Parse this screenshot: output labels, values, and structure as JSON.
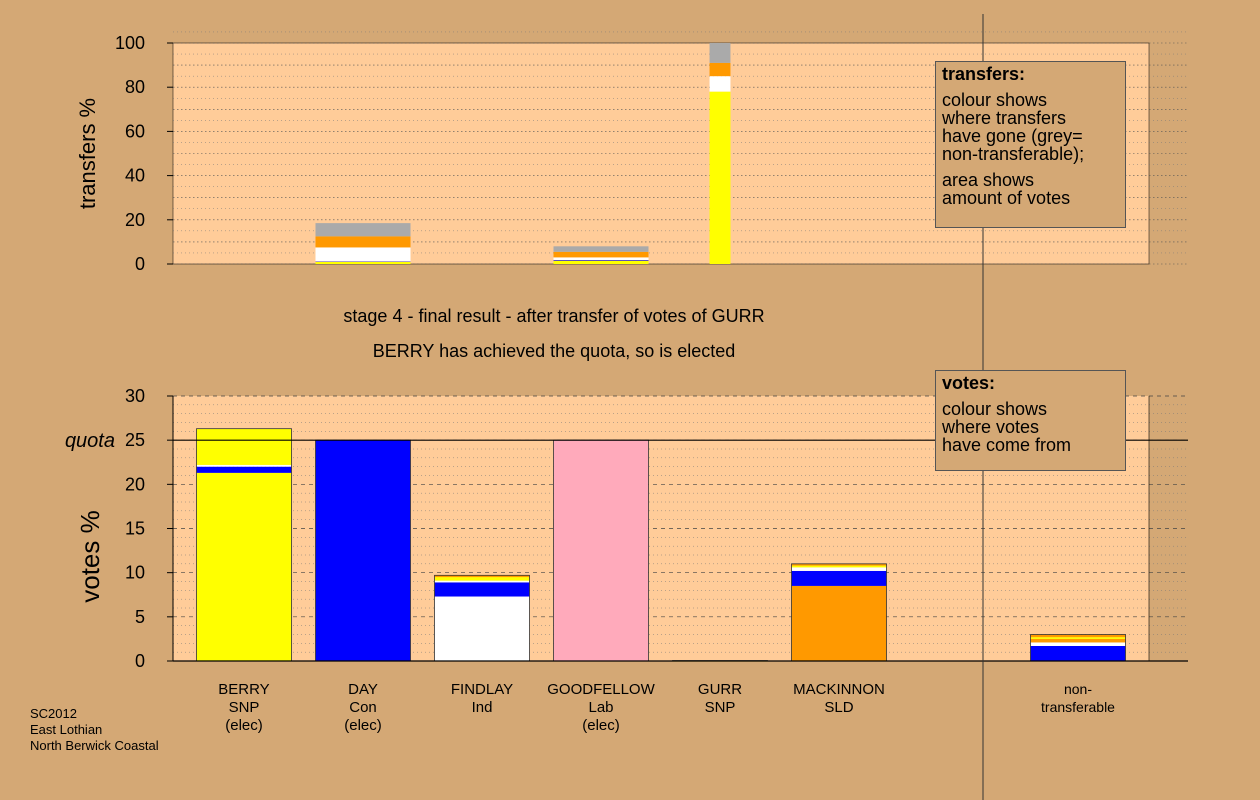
{
  "info": [
    "SC2012",
    "East Lothian",
    "North Berwick Coastal"
  ],
  "captions": [
    "stage 4 - final result - after transfer of votes of GURR",
    "BERRY has achieved the quota, so is elected"
  ],
  "legends": {
    "transfers": {
      "title": "transfers:",
      "lines_a": [
        "colour shows",
        "where transfers",
        "have gone (grey=",
        "non-transferable);"
      ],
      "lines_b": [
        "area shows",
        "amount of votes"
      ]
    },
    "votes": {
      "title": "votes:",
      "lines": [
        "colour shows",
        "where votes",
        "have come from"
      ]
    }
  },
  "colors": {
    "background": "#d4a875",
    "plot": "#ffcc99",
    "SNP": "#ffff00",
    "Con": "#0000ff",
    "Ind": "#ffffff",
    "Lab": "#ffaabb",
    "SLD": "#ff9900",
    "nontransferable": "#aaaaaa"
  },
  "chart_data": [
    {
      "type": "bar",
      "stacked": true,
      "ylabel": "transfers %",
      "ylim": [
        0,
        100
      ],
      "yticks": [
        0,
        20,
        40,
        60,
        80,
        100
      ],
      "grid": true,
      "categories": [
        "BERRY",
        "DAY",
        "FINDLAY",
        "GOODFELLOW",
        "GURR",
        "MACKINNON"
      ],
      "segment_order": [
        "BERRY",
        "DAY",
        "FINDLAY",
        "MACKINNON",
        "non-transferable"
      ],
      "segment_colors": [
        "#ffff00",
        "#0000ff",
        "#ffffff",
        "#ff9900",
        "#aaaaaa"
      ],
      "bars": [
        {
          "category": "DAY",
          "width_scale": 1.0,
          "segments": [
            1.0,
            0.2,
            6.3,
            5.0,
            6.0
          ]
        },
        {
          "category": "GOODFELLOW",
          "width_scale": 1.0,
          "segments": [
            1.5,
            0.3,
            1.2,
            2.5,
            2.5
          ]
        },
        {
          "category": "GURR",
          "width_scale": 0.22,
          "segments": [
            78,
            0,
            7,
            6,
            9
          ]
        }
      ]
    },
    {
      "type": "bar",
      "stacked": true,
      "ylabel": "votes %",
      "ylim": [
        0,
        30
      ],
      "yticks": [
        0,
        5,
        10,
        15,
        20,
        25,
        30
      ],
      "quota": 25,
      "quota_label": "quota",
      "grid": true,
      "categories": [
        {
          "name": "BERRY",
          "party": "SNP",
          "status": "(elec)"
        },
        {
          "name": "DAY",
          "party": "Con",
          "status": "(elec)"
        },
        {
          "name": "FINDLAY",
          "party": "Ind",
          "status": ""
        },
        {
          "name": "GOODFELLOW",
          "party": "Lab",
          "status": "(elec)"
        },
        {
          "name": "GURR",
          "party": "SNP",
          "status": ""
        },
        {
          "name": "MACKINNON",
          "party": "SLD",
          "status": ""
        },
        {
          "name": "non-transferable",
          "party": "",
          "status": "",
          "display": [
            "non-",
            "transferable"
          ]
        }
      ],
      "stacks": [
        [
          {
            "party": "SNP",
            "value": 21.3
          },
          {
            "party": "Con",
            "value": 0.7
          },
          {
            "party": "Ind",
            "value": 0.2
          },
          {
            "party": "SNP",
            "value": 4.1
          }
        ],
        [
          {
            "party": "Con",
            "value": 25.0
          }
        ],
        [
          {
            "party": "Ind",
            "value": 7.3
          },
          {
            "party": "Con",
            "value": 1.6
          },
          {
            "party": "Ind",
            "value": 0.2
          },
          {
            "party": "SNP",
            "value": 0.4
          },
          {
            "party": "SLD",
            "value": 0.2
          }
        ],
        [
          {
            "party": "Lab",
            "value": 25.0
          }
        ],
        [
          {
            "party": "SNP",
            "value": 0.05
          }
        ],
        [
          {
            "party": "SLD",
            "value": 8.5
          },
          {
            "party": "Con",
            "value": 1.7
          },
          {
            "party": "Ind",
            "value": 0.4
          },
          {
            "party": "SNP",
            "value": 0.2
          },
          {
            "party": "SLD",
            "value": 0.2
          }
        ],
        [
          {
            "party": "Con",
            "value": 1.7
          },
          {
            "party": "Ind",
            "value": 0.4
          },
          {
            "party": "SLD",
            "value": 0.4
          },
          {
            "party": "SNP",
            "value": 0.2
          },
          {
            "party": "SLD",
            "value": 0.3
          }
        ]
      ]
    }
  ]
}
